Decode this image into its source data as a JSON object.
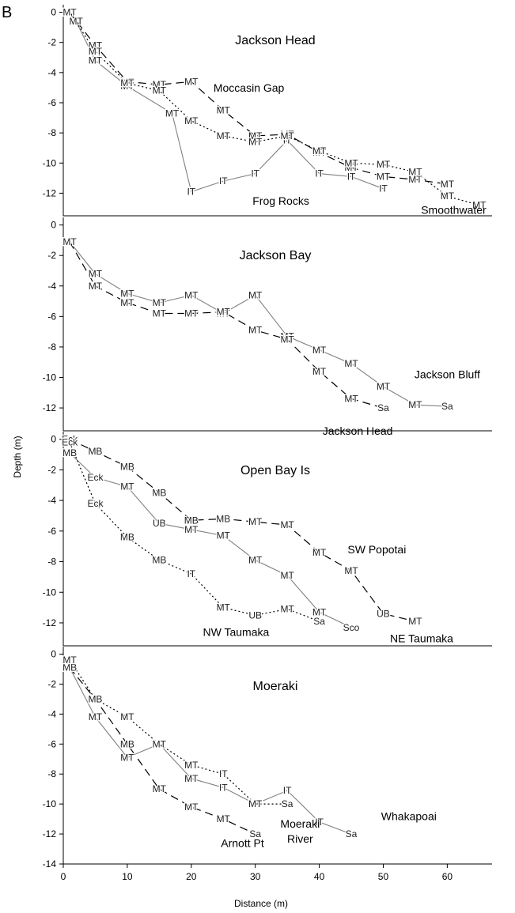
{
  "figure": {
    "panel_letter": "B",
    "xlabel": "Distance (m)",
    "ylabel": "Depth (m)"
  },
  "colors": {
    "solid": "#808080",
    "dashed": "#000000",
    "dotted": "#000000",
    "axis": "#000000"
  },
  "chart_data": [
    {
      "type": "line",
      "title": "Jackson Head",
      "xlim": [
        0,
        67
      ],
      "ylim": [
        -13.5,
        0.5
      ],
      "yticks": [
        0,
        -2,
        -4,
        -6,
        -8,
        -10,
        -12
      ],
      "xticks": [],
      "grid": false,
      "site_labels": [
        {
          "text": "Moccasin Gap",
          "x": 29,
          "y": -5.0
        },
        {
          "text": "Frog Rocks",
          "x": 34,
          "y": -12.5
        },
        {
          "text": "Smoothwater",
          "x": 61,
          "y": -13.1
        }
      ],
      "series": [
        {
          "style": "solid",
          "points": [
            {
              "x": 1,
              "y": 0,
              "label": "MT"
            },
            {
              "x": 2,
              "y": -0.6,
              "label": "MT"
            },
            {
              "x": 5,
              "y": -3.2,
              "label": "MT"
            },
            {
              "x": 10,
              "y": -4.9,
              "label": "MT"
            },
            {
              "x": 17,
              "y": -6.7,
              "label": "MT"
            },
            {
              "x": 20,
              "y": -11.9,
              "label": "IT"
            },
            {
              "x": 25,
              "y": -11.2,
              "label": "IT"
            },
            {
              "x": 30,
              "y": -10.7,
              "label": "IT"
            },
            {
              "x": 35,
              "y": -8.5,
              "label": "IT"
            },
            {
              "x": 40,
              "y": -10.7,
              "label": "IT"
            },
            {
              "x": 45,
              "y": -10.9,
              "label": "IT"
            },
            {
              "x": 50,
              "y": -11.7,
              "label": "IT"
            }
          ]
        },
        {
          "style": "dashed",
          "points": [
            {
              "x": 1,
              "y": 0,
              "label": "MT"
            },
            {
              "x": 5,
              "y": -2.2,
              "label": "MT"
            },
            {
              "x": 10,
              "y": -4.6,
              "label": "MT"
            },
            {
              "x": 15,
              "y": -4.8,
              "label": "MT"
            },
            {
              "x": 20,
              "y": -4.6,
              "label": "MT"
            },
            {
              "x": 25,
              "y": -6.5,
              "label": "MT"
            },
            {
              "x": 30,
              "y": -8.2,
              "label": "MT"
            },
            {
              "x": 35,
              "y": -8.1,
              "label": "MT"
            },
            {
              "x": 40,
              "y": -9.3,
              "label": "MT"
            },
            {
              "x": 45,
              "y": -10.3,
              "label": "MT"
            },
            {
              "x": 50,
              "y": -10.9,
              "label": "MT"
            },
            {
              "x": 55,
              "y": -11.1,
              "label": "MT"
            },
            {
              "x": 60,
              "y": -11.4,
              "label": "MT"
            }
          ]
        },
        {
          "style": "dotted",
          "points": [
            {
              "x": 1,
              "y": 0,
              "label": "MT"
            },
            {
              "x": 5,
              "y": -2.6,
              "label": "MT"
            },
            {
              "x": 10,
              "y": -4.7,
              "label": "MT"
            },
            {
              "x": 15,
              "y": -5.2,
              "label": "MT"
            },
            {
              "x": 20,
              "y": -7.2,
              "label": "MT"
            },
            {
              "x": 25,
              "y": -8.2,
              "label": "MT"
            },
            {
              "x": 30,
              "y": -8.6,
              "label": "MT"
            },
            {
              "x": 35,
              "y": -8.2,
              "label": "MT"
            },
            {
              "x": 40,
              "y": -9.2,
              "label": "MT"
            },
            {
              "x": 45,
              "y": -10.0,
              "label": "MT"
            },
            {
              "x": 50,
              "y": -10.1,
              "label": "MT"
            },
            {
              "x": 55,
              "y": -10.6,
              "label": "MT"
            },
            {
              "x": 60,
              "y": -12.2,
              "label": "MT"
            },
            {
              "x": 65,
              "y": -12.8,
              "label": "MT"
            }
          ]
        }
      ]
    },
    {
      "type": "line",
      "title": "Jackson Bay",
      "xlim": [
        0,
        67
      ],
      "ylim": [
        -13.5,
        0.5
      ],
      "yticks": [
        0,
        -2,
        -4,
        -6,
        -8,
        -10,
        -12
      ],
      "xticks": [],
      "grid": false,
      "site_labels": [
        {
          "text": "Jackson Bluff",
          "x": 60,
          "y": -9.8
        },
        {
          "text": "Jackson Head",
          "x": 46,
          "y": -13.5
        }
      ],
      "series": [
        {
          "style": "solid",
          "points": [
            {
              "x": 1,
              "y": -1.1,
              "label": "MT"
            },
            {
              "x": 5,
              "y": -3.2,
              "label": "MT"
            },
            {
              "x": 10,
              "y": -4.5,
              "label": "MT"
            },
            {
              "x": 15,
              "y": -5.1,
              "label": "MT"
            },
            {
              "x": 20,
              "y": -4.6,
              "label": "MT"
            },
            {
              "x": 25,
              "y": -5.8,
              "label": "MT"
            },
            {
              "x": 30,
              "y": -4.6,
              "label": "MT"
            },
            {
              "x": 35,
              "y": -7.3,
              "label": "MT"
            },
            {
              "x": 40,
              "y": -8.2,
              "label": "MT"
            },
            {
              "x": 45,
              "y": -9.1,
              "label": "MT"
            },
            {
              "x": 50,
              "y": -10.6,
              "label": "MT"
            },
            {
              "x": 55,
              "y": -11.8,
              "label": "MT"
            },
            {
              "x": 60,
              "y": -11.9,
              "label": "Sa"
            }
          ]
        },
        {
          "style": "dashed",
          "points": [
            {
              "x": 1,
              "y": -1.1,
              "label": "MT"
            },
            {
              "x": 5,
              "y": -4.0,
              "label": "MT"
            },
            {
              "x": 10,
              "y": -5.1,
              "label": "MT"
            },
            {
              "x": 15,
              "y": -5.8,
              "label": "MT"
            },
            {
              "x": 20,
              "y": -5.8,
              "label": "MT"
            },
            {
              "x": 25,
              "y": -5.7,
              "label": "MT"
            },
            {
              "x": 30,
              "y": -6.9,
              "label": "MT"
            },
            {
              "x": 35,
              "y": -7.5,
              "label": "MT"
            },
            {
              "x": 40,
              "y": -9.6,
              "label": "MT"
            },
            {
              "x": 45,
              "y": -11.4,
              "label": "MT"
            },
            {
              "x": 50,
              "y": -12.0,
              "label": "Sa"
            }
          ]
        }
      ]
    },
    {
      "type": "line",
      "title": "Open Bay Is",
      "xlim": [
        0,
        67
      ],
      "ylim": [
        -13.5,
        0.5
      ],
      "yticks": [
        0,
        -2,
        -4,
        -6,
        -8,
        -10,
        -12
      ],
      "xticks": [],
      "grid": false,
      "site_labels": [
        {
          "text": "SW Popotai",
          "x": 49,
          "y": -7.2
        },
        {
          "text": "NW Taumaka",
          "x": 27,
          "y": -12.6
        },
        {
          "text": "NE Taumaka",
          "x": 56,
          "y": -13.0
        }
      ],
      "series": [
        {
          "style": "solid",
          "points": [
            {
              "x": 1,
              "y": -0.9,
              "label": "MB"
            },
            {
              "x": 5,
              "y": -2.5,
              "label": "Eck"
            },
            {
              "x": 10,
              "y": -3.1,
              "label": "MT"
            },
            {
              "x": 15,
              "y": -5.5,
              "label": "UB"
            },
            {
              "x": 20,
              "y": -5.9,
              "label": "MT"
            },
            {
              "x": 25,
              "y": -6.3,
              "label": "MT"
            },
            {
              "x": 30,
              "y": -7.9,
              "label": "MT"
            },
            {
              "x": 35,
              "y": -8.9,
              "label": "MT"
            },
            {
              "x": 40,
              "y": -11.3,
              "label": "MT"
            },
            {
              "x": 45,
              "y": -12.3,
              "label": "Sco"
            }
          ]
        },
        {
          "style": "dashed",
          "points": [
            {
              "x": 1,
              "y": 0,
              "label": "Eck"
            },
            {
              "x": 5,
              "y": -0.8,
              "label": "MB"
            },
            {
              "x": 10,
              "y": -1.8,
              "label": "MB"
            },
            {
              "x": 15,
              "y": -3.5,
              "label": "MB"
            },
            {
              "x": 20,
              "y": -5.3,
              "label": "MB"
            },
            {
              "x": 25,
              "y": -5.2,
              "label": "MB"
            },
            {
              "x": 30,
              "y": -5.4,
              "label": "MT"
            },
            {
              "x": 35,
              "y": -5.6,
              "label": "MT"
            },
            {
              "x": 40,
              "y": -7.4,
              "label": "MT"
            },
            {
              "x": 45,
              "y": -8.6,
              "label": "MT"
            },
            {
              "x": 50,
              "y": -11.4,
              "label": "UB"
            },
            {
              "x": 55,
              "y": -11.9,
              "label": "MT"
            }
          ]
        },
        {
          "style": "dotted",
          "points": [
            {
              "x": 1,
              "y": -0.2,
              "label": "Eck"
            },
            {
              "x": 5,
              "y": -4.2,
              "label": "Eck"
            },
            {
              "x": 10,
              "y": -6.4,
              "label": "MB"
            },
            {
              "x": 15,
              "y": -7.9,
              "label": "MB"
            },
            {
              "x": 20,
              "y": -8.8,
              "label": "IT"
            },
            {
              "x": 25,
              "y": -11.0,
              "label": "MT"
            },
            {
              "x": 30,
              "y": -11.5,
              "label": "UB"
            },
            {
              "x": 35,
              "y": -11.1,
              "label": "MT"
            },
            {
              "x": 40,
              "y": -11.9,
              "label": "Sa"
            }
          ]
        }
      ]
    },
    {
      "type": "line",
      "title": "Moeraki",
      "xlim": [
        0,
        67
      ],
      "ylim": [
        -14,
        0.5
      ],
      "yticks": [
        0,
        -2,
        -4,
        -6,
        -8,
        -10,
        -12,
        -14
      ],
      "xticks": [
        0,
        10,
        20,
        30,
        40,
        50,
        60
      ],
      "grid": false,
      "site_labels": [
        {
          "text": "Whakapoai",
          "x": 54,
          "y": -10.8
        },
        {
          "text": "Moeraki",
          "x": 37,
          "y": -11.3
        },
        {
          "text": "River",
          "x": 37,
          "y": -12.3
        },
        {
          "text": "Arnott Pt",
          "x": 28,
          "y": -12.6
        }
      ],
      "series": [
        {
          "style": "solid",
          "points": [
            {
              "x": 1,
              "y": -0.9,
              "label": "MB"
            },
            {
              "x": 5,
              "y": -4.2,
              "label": "MT"
            },
            {
              "x": 10,
              "y": -6.9,
              "label": "MT"
            },
            {
              "x": 15,
              "y": -6.0,
              "label": "MT"
            },
            {
              "x": 20,
              "y": -8.3,
              "label": "MT"
            },
            {
              "x": 25,
              "y": -8.9,
              "label": "IT"
            },
            {
              "x": 30,
              "y": -10.0,
              "label": "MT"
            },
            {
              "x": 35,
              "y": -9.1,
              "label": "IT"
            },
            {
              "x": 40,
              "y": -11.2,
              "label": "IT"
            },
            {
              "x": 45,
              "y": -12.0,
              "label": "Sa"
            }
          ]
        },
        {
          "style": "dashed",
          "points": [
            {
              "x": 1,
              "y": -0.9,
              "label": "MB"
            },
            {
              "x": 5,
              "y": -3.0,
              "label": "MB"
            },
            {
              "x": 10,
              "y": -6.0,
              "label": "MB"
            },
            {
              "x": 15,
              "y": -9.0,
              "label": "MT"
            },
            {
              "x": 20,
              "y": -10.2,
              "label": "MT"
            },
            {
              "x": 25,
              "y": -11.0,
              "label": "MT"
            },
            {
              "x": 30,
              "y": -12.0,
              "label": "Sa"
            }
          ]
        },
        {
          "style": "dotted",
          "points": [
            {
              "x": 1,
              "y": -0.4,
              "label": "MT"
            },
            {
              "x": 5,
              "y": -3.0,
              "label": "MB"
            },
            {
              "x": 10,
              "y": -4.2,
              "label": "MT"
            },
            {
              "x": 15,
              "y": -6.0,
              "label": "MT"
            },
            {
              "x": 20,
              "y": -7.4,
              "label": "MT"
            },
            {
              "x": 25,
              "y": -8.0,
              "label": "IT"
            },
            {
              "x": 30,
              "y": -10.0,
              "label": "MT"
            },
            {
              "x": 35,
              "y": -10.0,
              "label": "Sa"
            }
          ]
        }
      ]
    }
  ]
}
